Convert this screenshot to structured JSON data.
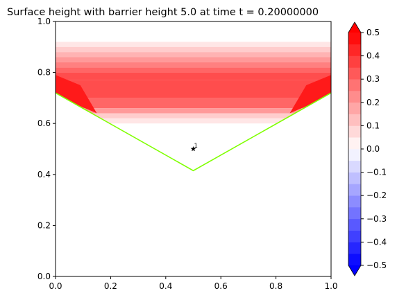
{
  "chart_data": {
    "type": "contour",
    "title": "Surface height with barrier height 5.0 at time t =     0.20000000",
    "xlabel": "",
    "ylabel": "",
    "xlim": [
      0.0,
      1.0
    ],
    "ylim": [
      0.0,
      1.0
    ],
    "x_ticks": [
      "0.0",
      "0.2",
      "0.4",
      "0.6",
      "0.8",
      "1.0"
    ],
    "y_ticks": [
      "0.0",
      "0.2",
      "0.4",
      "0.6",
      "0.8",
      "1.0"
    ],
    "grid": false,
    "colorbar": {
      "range": [
        -0.5,
        0.5
      ],
      "ticks": [
        "0.5",
        "0.4",
        "0.3",
        "0.2",
        "0.1",
        "0.0",
        "−0.1",
        "−0.2",
        "−0.3",
        "−0.4",
        "−0.5"
      ],
      "extend": "both",
      "levels": 20,
      "colormap": "bwr",
      "colors": {
        "positive": "#ff0000",
        "zero": "#ffffff",
        "negative": "#0000ff"
      }
    },
    "series": [
      {
        "type": "line",
        "color": "#7fff00",
        "x": [
          0.0,
          0.5,
          1.0
        ],
        "y": [
          0.72,
          0.415,
          0.72
        ]
      }
    ],
    "bands": [
      {
        "y_range": [
          0.9,
          0.92
        ],
        "value": 0.05
      },
      {
        "y_range": [
          0.88,
          0.9
        ],
        "value": 0.1
      },
      {
        "y_range": [
          0.86,
          0.88
        ],
        "value": 0.15
      },
      {
        "y_range": [
          0.84,
          0.86
        ],
        "value": 0.2
      },
      {
        "y_range": [
          0.82,
          0.84
        ],
        "value": 0.25
      },
      {
        "y_range": [
          0.8,
          0.82
        ],
        "value": 0.3
      },
      {
        "y_range": [
          0.77,
          0.8
        ],
        "value": 0.35
      },
      {
        "y_range": [
          0.7,
          0.77
        ],
        "value": 0.35
      },
      {
        "y_range": [
          0.66,
          0.7
        ],
        "value": 0.3
      },
      {
        "y_range": [
          0.64,
          0.66
        ],
        "value": 0.2
      },
      {
        "y_range": [
          0.62,
          0.64
        ],
        "value": 0.1
      },
      {
        "y_range": [
          0.6,
          0.62
        ],
        "value": 0.05
      }
    ],
    "corner_regions": [
      {
        "side": "left",
        "value": 0.45
      },
      {
        "side": "right",
        "value": 0.45
      }
    ],
    "gauges": [
      {
        "label": "1",
        "x": 0.5,
        "y": 0.5,
        "marker": "star"
      }
    ]
  }
}
